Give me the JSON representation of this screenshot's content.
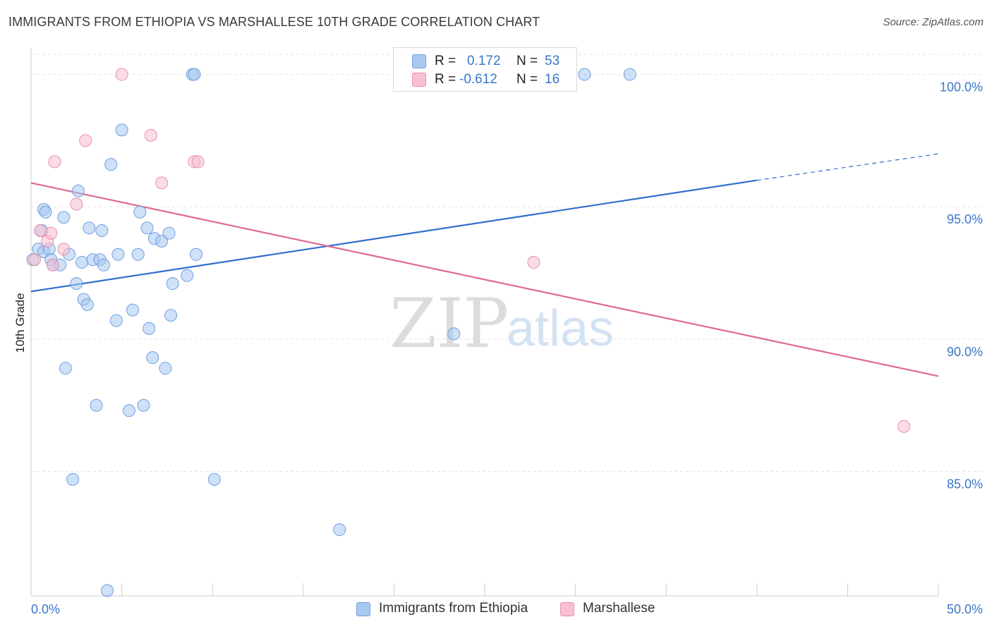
{
  "header": {
    "title": "IMMIGRANTS FROM ETHIOPIA VS MARSHALLESE 10TH GRADE CORRELATION CHART",
    "source": "Source: ZipAtlas.com"
  },
  "watermark": {
    "zip": "ZIP",
    "atlas": "atlas"
  },
  "legend": {
    "rows": [
      {
        "r_key": "R =",
        "r_value": "0.172",
        "n_key": "N =",
        "n_value": "53",
        "color": "#a8c8f0",
        "border": "#6f9fe0"
      },
      {
        "r_key": "R =",
        "r_value": "-0.612",
        "n_key": "N =",
        "n_value": "16",
        "color": "#f8c0d0",
        "border": "#e890aa"
      }
    ]
  },
  "bottom_legend": {
    "items": [
      {
        "label": "Immigrants from Ethiopia",
        "color": "#a8c8f0",
        "border": "#6f9fe0"
      },
      {
        "label": "Marshallese",
        "color": "#f8c0d0",
        "border": "#e890aa"
      }
    ]
  },
  "chart_data": {
    "type": "scatter",
    "ylabel": "10th Grade",
    "xlim": [
      0,
      50
    ],
    "ylim": [
      80.3,
      101.0
    ],
    "x_tick_labels": [
      "0.0%",
      "50.0%"
    ],
    "y_ticks": [
      85,
      90,
      95,
      100
    ],
    "y_tick_labels": [
      "85.0%",
      "90.0%",
      "95.0%",
      "100.0%"
    ],
    "grid": true,
    "colors": {
      "ethiopia_fill": "#a8c8f0",
      "ethiopia_stroke": "#6f9fe0",
      "ethiopia_line": "#2e6fcc",
      "marshallese_fill": "#f8c0d0",
      "marshallese_stroke": "#e890aa",
      "marshallese_line": "#e06892"
    },
    "series": [
      {
        "name": "Immigrants from Ethiopia",
        "points": [
          [
            0.1,
            93.0
          ],
          [
            0.4,
            93.4
          ],
          [
            0.6,
            94.1
          ],
          [
            0.7,
            93.3
          ],
          [
            0.7,
            94.9
          ],
          [
            0.8,
            94.8
          ],
          [
            1.0,
            93.4
          ],
          [
            1.1,
            93.0
          ],
          [
            1.2,
            92.8
          ],
          [
            1.6,
            92.8
          ],
          [
            1.8,
            94.6
          ],
          [
            1.9,
            88.9
          ],
          [
            2.1,
            93.2
          ],
          [
            2.3,
            84.7
          ],
          [
            2.5,
            92.1
          ],
          [
            2.6,
            95.6
          ],
          [
            2.8,
            92.9
          ],
          [
            2.9,
            91.5
          ],
          [
            3.1,
            91.3
          ],
          [
            3.2,
            94.2
          ],
          [
            3.4,
            93.0
          ],
          [
            3.6,
            87.5
          ],
          [
            3.8,
            93.0
          ],
          [
            3.9,
            94.1
          ],
          [
            4.0,
            92.8
          ],
          [
            4.2,
            80.5
          ],
          [
            4.4,
            96.6
          ],
          [
            4.7,
            90.7
          ],
          [
            4.8,
            93.2
          ],
          [
            5.0,
            97.9
          ],
          [
            5.4,
            87.3
          ],
          [
            5.6,
            91.1
          ],
          [
            5.9,
            93.2
          ],
          [
            6.0,
            94.8
          ],
          [
            6.2,
            87.5
          ],
          [
            6.4,
            94.2
          ],
          [
            6.5,
            90.4
          ],
          [
            6.7,
            89.3
          ],
          [
            6.8,
            93.8
          ],
          [
            7.2,
            93.7
          ],
          [
            7.4,
            88.9
          ],
          [
            7.6,
            94.0
          ],
          [
            7.7,
            90.9
          ],
          [
            7.8,
            92.1
          ],
          [
            8.6,
            92.4
          ],
          [
            8.9,
            100.0
          ],
          [
            9.0,
            100.0
          ],
          [
            9.1,
            93.2
          ],
          [
            10.1,
            84.7
          ],
          [
            17.0,
            82.8
          ],
          [
            23.3,
            90.2
          ],
          [
            30.5,
            100.0
          ],
          [
            33.0,
            100.0
          ]
        ],
        "trend": {
          "x_start": 0,
          "y_start": 91.8,
          "x_solid_end": 40,
          "y_solid_end": 96.0,
          "x_dash_end": 50,
          "y_dash_end": 97.0
        }
      },
      {
        "name": "Marshallese",
        "points": [
          [
            0.2,
            93.0
          ],
          [
            0.5,
            94.1
          ],
          [
            0.9,
            93.7
          ],
          [
            1.1,
            94.0
          ],
          [
            1.2,
            92.8
          ],
          [
            1.3,
            96.7
          ],
          [
            1.8,
            93.4
          ],
          [
            2.5,
            95.1
          ],
          [
            3.0,
            97.5
          ],
          [
            5.0,
            100.0
          ],
          [
            6.6,
            97.7
          ],
          [
            7.2,
            95.9
          ],
          [
            9.0,
            96.7
          ],
          [
            9.2,
            96.7
          ],
          [
            27.7,
            92.9
          ],
          [
            48.1,
            86.7
          ]
        ],
        "trend": {
          "x_start": 0,
          "y_start": 95.9,
          "x_end": 50,
          "y_end": 88.6
        }
      }
    ]
  }
}
